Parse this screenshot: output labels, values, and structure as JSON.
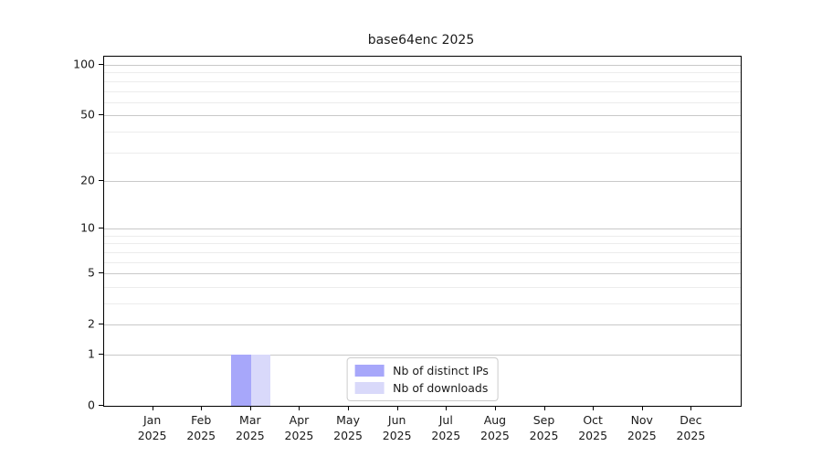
{
  "chart_data": {
    "type": "bar",
    "title": "base64enc 2025",
    "year_label": "2025",
    "categories": [
      "Jan",
      "Feb",
      "Mar",
      "Apr",
      "May",
      "Jun",
      "Jul",
      "Aug",
      "Sep",
      "Oct",
      "Nov",
      "Dec"
    ],
    "series": [
      {
        "name": "Nb of distinct IPs",
        "color": "#a7a7fa",
        "values": [
          0,
          0,
          1,
          0,
          0,
          0,
          0,
          0,
          0,
          0,
          0,
          0
        ]
      },
      {
        "name": "Nb of downloads",
        "color": "#d9d9fa",
        "values": [
          0,
          0,
          1,
          0,
          0,
          0,
          0,
          0,
          0,
          0,
          0,
          0
        ]
      }
    ],
    "xlabel": "",
    "ylabel": "",
    "yscale": "log1p",
    "ylim": [
      0,
      112
    ],
    "y_ticks_major": [
      0,
      1,
      2,
      5,
      10,
      20,
      50,
      100
    ],
    "y_ticks_minor": [
      3,
      4,
      6,
      7,
      8,
      9,
      30,
      40,
      60,
      70,
      80,
      90
    ],
    "grid": "horizontal",
    "legend_position": "lower center"
  },
  "style": {
    "major_grid_color": "#c9c9c9",
    "minor_grid_color": "#ececec",
    "spine_color": "#000000",
    "text_color": "#1a1a1a",
    "background": "#ffffff"
  }
}
